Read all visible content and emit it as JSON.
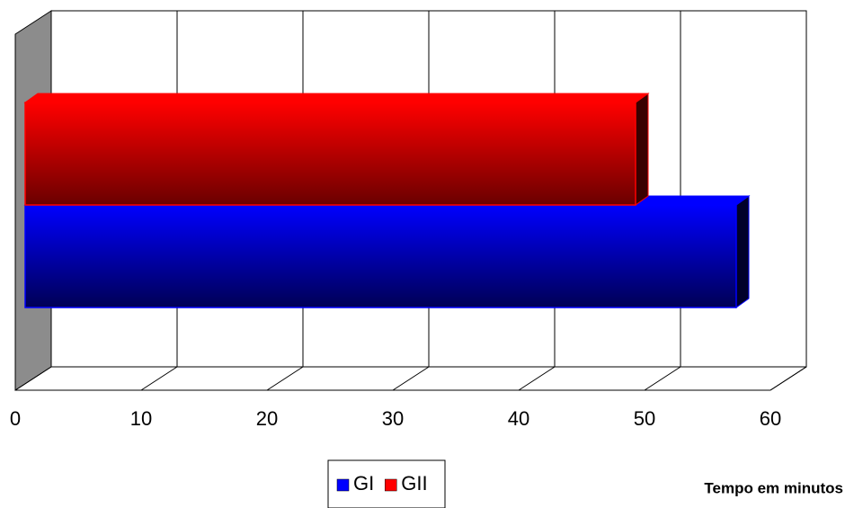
{
  "chart_data": {
    "type": "bar3d_horizontal",
    "x_label": "Tempo em minutos",
    "categories": [
      null
    ],
    "series": [
      {
        "name": "GI",
        "color": "#0000ff",
        "values": [
          56.5
        ]
      },
      {
        "name": "GII",
        "color": "#ff0000",
        "values": [
          48.5
        ]
      }
    ],
    "xlim": [
      0,
      60
    ],
    "xticks": [
      0,
      10,
      20,
      30,
      40,
      50,
      60
    ],
    "grid": true,
    "legend": "bottom"
  }
}
